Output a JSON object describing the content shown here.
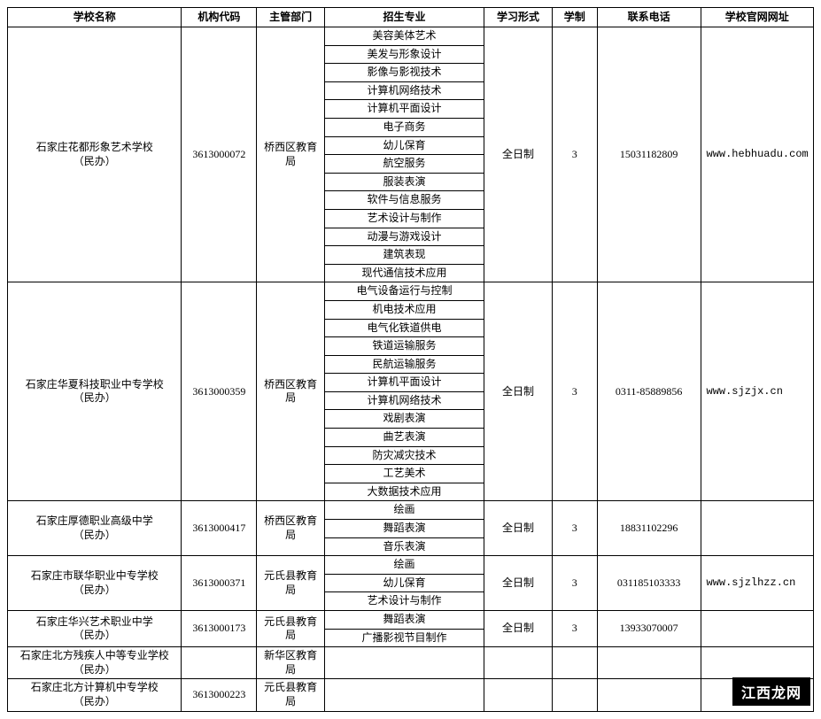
{
  "headers": {
    "name": "学校名称",
    "code": "机构代码",
    "dept": "主管部门",
    "major": "招生专业",
    "study": "学习形式",
    "years": "学制",
    "phone": "联系电话",
    "web": "学校官网网址"
  },
  "watermark": "江西龙网",
  "schools": [
    {
      "name": "石家庄花都形象艺术学校\n（民办）",
      "code": "3613000072",
      "dept": "桥西区教育局",
      "study": "全日制",
      "years": "3",
      "phone": "15031182809",
      "web": "www.hebhuadu.com",
      "majors": [
        "美容美体艺术",
        "美发与形象设计",
        "影像与影视技术",
        "计算机网络技术",
        "计算机平面设计",
        "电子商务",
        "幼儿保育",
        "航空服务",
        "服装表演",
        "软件与信息服务",
        "艺术设计与制作",
        "动漫与游戏设计",
        "建筑表现",
        "现代通信技术应用"
      ]
    },
    {
      "name": "石家庄华夏科技职业中专学校\n（民办）",
      "code": "3613000359",
      "dept": "桥西区教育局",
      "study": "全日制",
      "years": "3",
      "phone": "0311-85889856",
      "web": "www.sjzjx.cn",
      "majors": [
        "电气设备运行与控制",
        "机电技术应用",
        "电气化铁道供电",
        "铁道运输服务",
        "民航运输服务",
        "计算机平面设计",
        "计算机网络技术",
        "戏剧表演",
        "曲艺表演",
        "防灾减灾技术",
        "工艺美术",
        "大数据技术应用"
      ]
    },
    {
      "name": "石家庄厚德职业高级中学\n（民办）",
      "code": "3613000417",
      "dept": "桥西区教育局",
      "study": "全日制",
      "years": "3",
      "phone": "18831102296",
      "web": "",
      "majors": [
        "绘画",
        "舞蹈表演",
        "音乐表演"
      ]
    },
    {
      "name": "石家庄市联华职业中专学校\n（民办）",
      "code": "3613000371",
      "dept": "元氏县教育局",
      "study": "全日制",
      "years": "3",
      "phone": "031185103333",
      "web": "www.sjzlhzz.cn",
      "majors": [
        "绘画",
        "幼儿保育",
        "艺术设计与制作"
      ]
    },
    {
      "name": "石家庄华兴艺术职业中学\n（民办）",
      "code": "3613000173",
      "dept": "元氏县教育局",
      "study": "全日制",
      "years": "3",
      "phone": "13933070007",
      "web": "",
      "majors": [
        "舞蹈表演",
        "广播影视节目制作"
      ]
    },
    {
      "name": "石家庄北方残疾人中等专业学校\n（民办）",
      "code": "",
      "dept": "新华区教育局",
      "study": "",
      "years": "",
      "phone": "",
      "web": "",
      "majors": [
        ""
      ]
    },
    {
      "name": "石家庄北方计算机中专学校\n（民办）",
      "code": "3613000223",
      "dept": "元氏县教育局",
      "study": "",
      "years": "",
      "phone": "",
      "web": "",
      "majors": [
        ""
      ]
    }
  ]
}
